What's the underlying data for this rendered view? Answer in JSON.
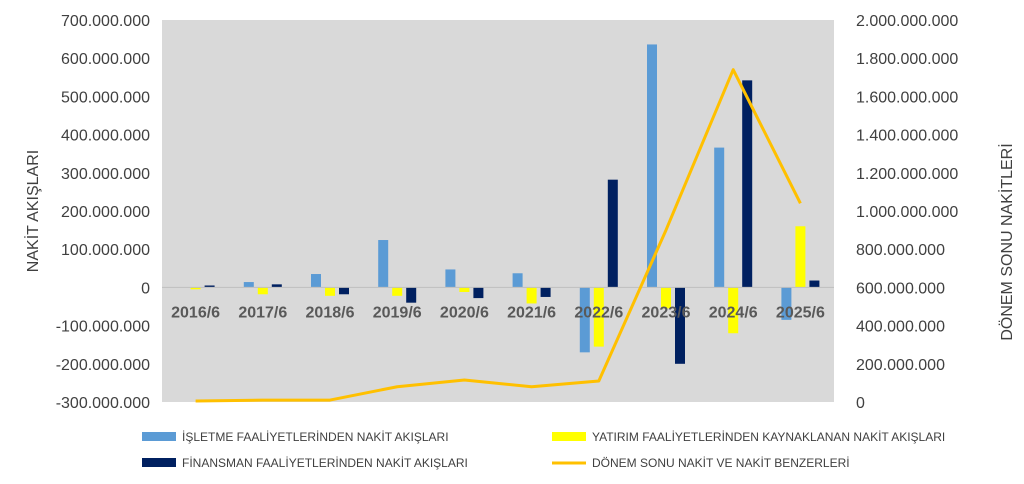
{
  "chart_data": {
    "type": "bar",
    "categories": [
      "2016/6",
      "2017/6",
      "2018/6",
      "2019/6",
      "2020/6",
      "2021/6",
      "2022/6",
      "2023/6",
      "2024/6",
      "2025/6"
    ],
    "series": [
      {
        "name": "İŞLETME FAALİYETLERİNDEN NAKİT AKIŞLARI",
        "type": "bar",
        "axis": "left",
        "color": "#5B9BD5",
        "values": [
          1000000,
          14000000,
          35000000,
          124000000,
          47000000,
          37000000,
          -170000000,
          636000000,
          366000000,
          -85000000
        ]
      },
      {
        "name": "YATIRIM FAALİYETLERİNDEN KAYNAKLANAN NAKİT AKIŞLARI",
        "type": "bar",
        "axis": "left",
        "color": "#FFFF00",
        "values": [
          -5000000,
          -18000000,
          -22000000,
          -22000000,
          -12000000,
          -42000000,
          -155000000,
          -55000000,
          -120000000,
          160000000
        ]
      },
      {
        "name": "FİNANSMAN FAALİYETLERİNDEN NAKİT AKIŞLARI",
        "type": "bar",
        "axis": "left",
        "color": "#002060",
        "values": [
          5000000,
          8000000,
          -18000000,
          -40000000,
          -28000000,
          -25000000,
          282000000,
          -200000000,
          542000000,
          18000000
        ]
      },
      {
        "name": "DÖNEM SONU NAKİT VE NAKİT BENZERLERİ",
        "type": "line",
        "axis": "right",
        "color": "#FFC000",
        "values": [
          5000000,
          10000000,
          10000000,
          80000000,
          115000000,
          80000000,
          110000000,
          900000000,
          1740000000,
          1040000000
        ]
      }
    ],
    "y_left": {
      "label": "NAKİT AKIŞLARI",
      "min": -300000000,
      "max": 700000000,
      "step": 100000000,
      "ticks": [
        "-300.000.000",
        "-200.000.000",
        "-100.000.000",
        "0",
        "100.000.000",
        "200.000.000",
        "300.000.000",
        "400.000.000",
        "500.000.000",
        "600.000.000",
        "700.000.000"
      ]
    },
    "y_right": {
      "label": "DÖNEM SONU NAKİTLERİ",
      "min": 0,
      "max": 2000000000,
      "step": 200000000,
      "ticks": [
        "0",
        "200.000.000",
        "400.000.000",
        "600.000.000",
        "800.000.000",
        "1.000.000.000",
        "1.200.000.000",
        "1.400.000.000",
        "1.600.000.000",
        "1.800.000.000",
        "2.000.000.000"
      ]
    },
    "grid": false,
    "plot_background": "#D9D9D9",
    "legend_position": "bottom"
  }
}
